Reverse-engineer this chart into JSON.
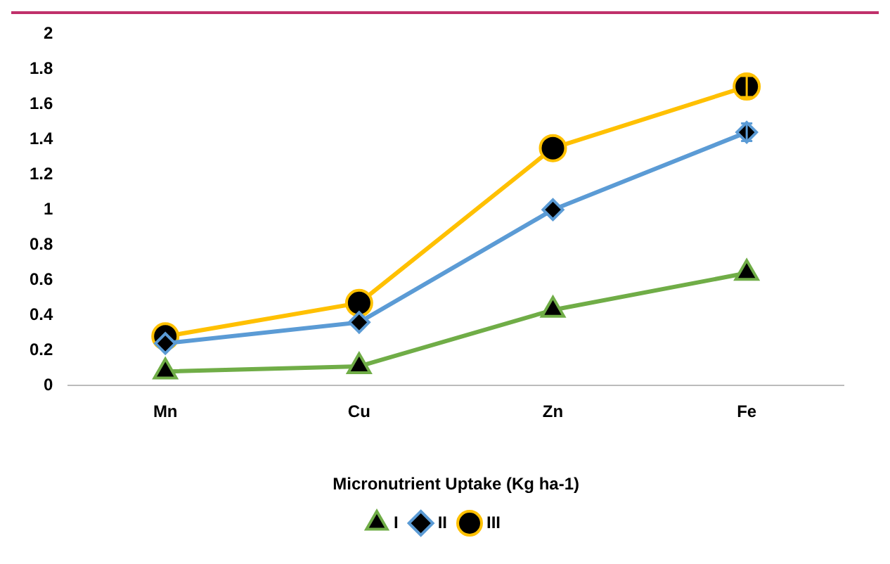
{
  "chart_data": {
    "type": "line",
    "xlabel": "Micronutrient Uptake (Kg ha-1)",
    "categories": [
      "Mn",
      "Cu",
      "Zn",
      "Fe"
    ],
    "series": [
      {
        "name": "I",
        "color": "#70ad47",
        "marker": "triangle",
        "values": [
          0.08,
          0.11,
          0.43,
          0.64
        ]
      },
      {
        "name": "II",
        "color": "#5b9bd5",
        "marker": "diamond",
        "values": [
          0.24,
          0.36,
          1.0,
          1.44
        ],
        "errors": [
          null,
          null,
          null,
          0.05
        ]
      },
      {
        "name": "III",
        "color": "#ffc000",
        "marker": "circle",
        "values": [
          0.28,
          0.47,
          1.35,
          1.7
        ],
        "errors": [
          null,
          null,
          null,
          0.06
        ]
      }
    ],
    "ylim": [
      0,
      2
    ],
    "yticks": [
      0,
      0.2,
      0.4,
      0.6,
      0.8,
      1,
      1.2,
      1.4,
      1.6,
      1.8,
      2
    ],
    "grid": false,
    "legend": "bottom",
    "line_style": "solid"
  }
}
